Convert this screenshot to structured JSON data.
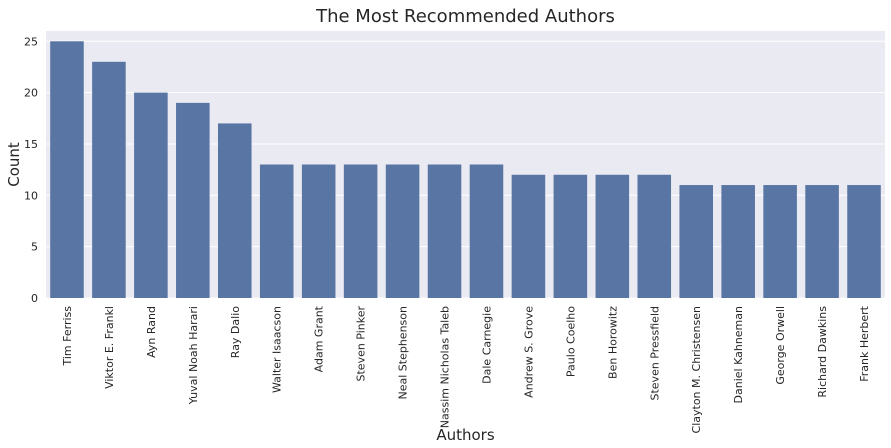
{
  "chart_data": {
    "type": "bar",
    "title": "The Most Recommended Authors",
    "xlabel": "Authors",
    "ylabel": "Count",
    "ylim": [
      0,
      26
    ],
    "yticks": [
      0,
      5,
      10,
      15,
      20,
      25
    ],
    "grid": true,
    "bar_color": "#5975a4",
    "background_color": "#eaeaf2",
    "categories": [
      "Tim Ferriss",
      "Viktor E. Frankl",
      "Ayn Rand",
      "Yuval Noah Harari",
      "Ray Dalio",
      "Walter Isaacson",
      "Adam Grant",
      "Steven Pinker",
      "Neal Stephenson",
      "Nassim Nicholas Taleb",
      "Dale Carnegie",
      "Andrew S. Grove",
      "Paulo Coelho",
      "Ben Horowitz",
      "Steven Pressfield",
      "Clayton M. Christensen",
      "Daniel Kahneman",
      "George Orwell",
      "Richard Dawkins",
      "Frank Herbert"
    ],
    "values": [
      25,
      23,
      20,
      19,
      17,
      13,
      13,
      13,
      13,
      13,
      13,
      12,
      12,
      12,
      12,
      11,
      11,
      11,
      11,
      11
    ]
  }
}
